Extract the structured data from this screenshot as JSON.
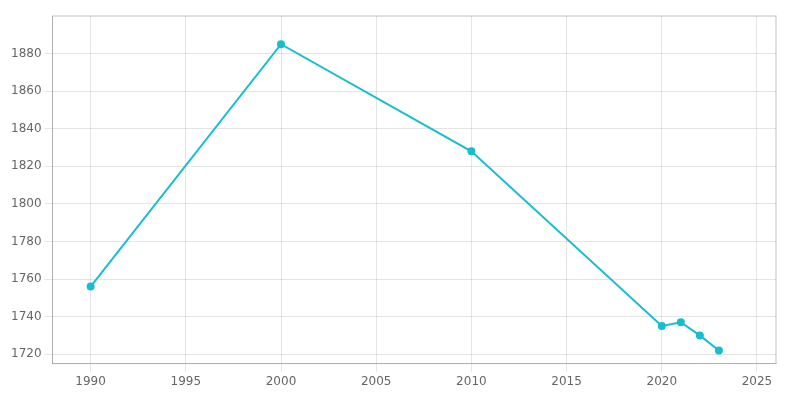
{
  "chart_data": {
    "type": "line",
    "x": [
      1990,
      2000,
      2010,
      2020,
      2021,
      2022,
      2023
    ],
    "values": [
      1756,
      1885,
      1828,
      1735,
      1737,
      1730,
      1722
    ],
    "color": "#17becf",
    "marker": "circle",
    "xlim": [
      1988,
      2026
    ],
    "ylim": [
      1715,
      1900
    ],
    "xticks": [
      1990,
      1995,
      2000,
      2005,
      2010,
      2015,
      2020,
      2025
    ],
    "yticks": [
      1720,
      1740,
      1760,
      1780,
      1800,
      1820,
      1840,
      1860,
      1880
    ],
    "grid": true
  }
}
